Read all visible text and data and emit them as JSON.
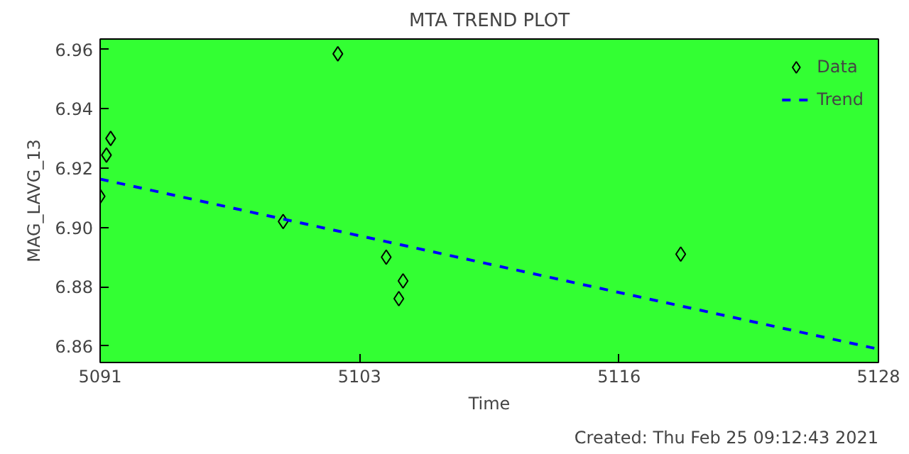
{
  "chart_data": {
    "type": "scatter",
    "title": "MTA TREND PLOT",
    "xlabel": "Time",
    "ylabel": "MAG_LAVG_13",
    "annotations": [
      "Created: Thu Feb 25 09:12:43 2021"
    ],
    "xlim": [
      5091,
      5128
    ],
    "xticks": [
      5091,
      {
        "value": 5103.33,
        "label": "5103"
      },
      {
        "value": 5115.67,
        "label": "5116"
      },
      5128
    ],
    "ylim": [
      6.8545,
      6.9635
    ],
    "yticks": [
      6.86,
      6.88,
      {
        "value": 6.9,
        "label": "6.90"
      },
      6.92,
      6.94,
      6.96
    ],
    "grid": false,
    "legend": "top right",
    "series": [
      {
        "name": "Data",
        "marker": "diamond",
        "color": "#000000",
        "x": [
          5091.0,
          5091.3,
          5091.5,
          5099.7,
          5102.3,
          5104.6,
          5105.4,
          5105.2,
          5118.6
        ],
        "values": [
          6.9105,
          6.9244,
          6.93,
          6.902,
          6.9585,
          6.89,
          6.882,
          6.876,
          6.891
        ]
      },
      {
        "name": "Trend",
        "type": "line",
        "line_style": "dashed",
        "color": "#0000ff",
        "x": [
          5091,
          5128
        ],
        "values": [
          6.9163,
          6.859
        ]
      }
    ]
  }
}
